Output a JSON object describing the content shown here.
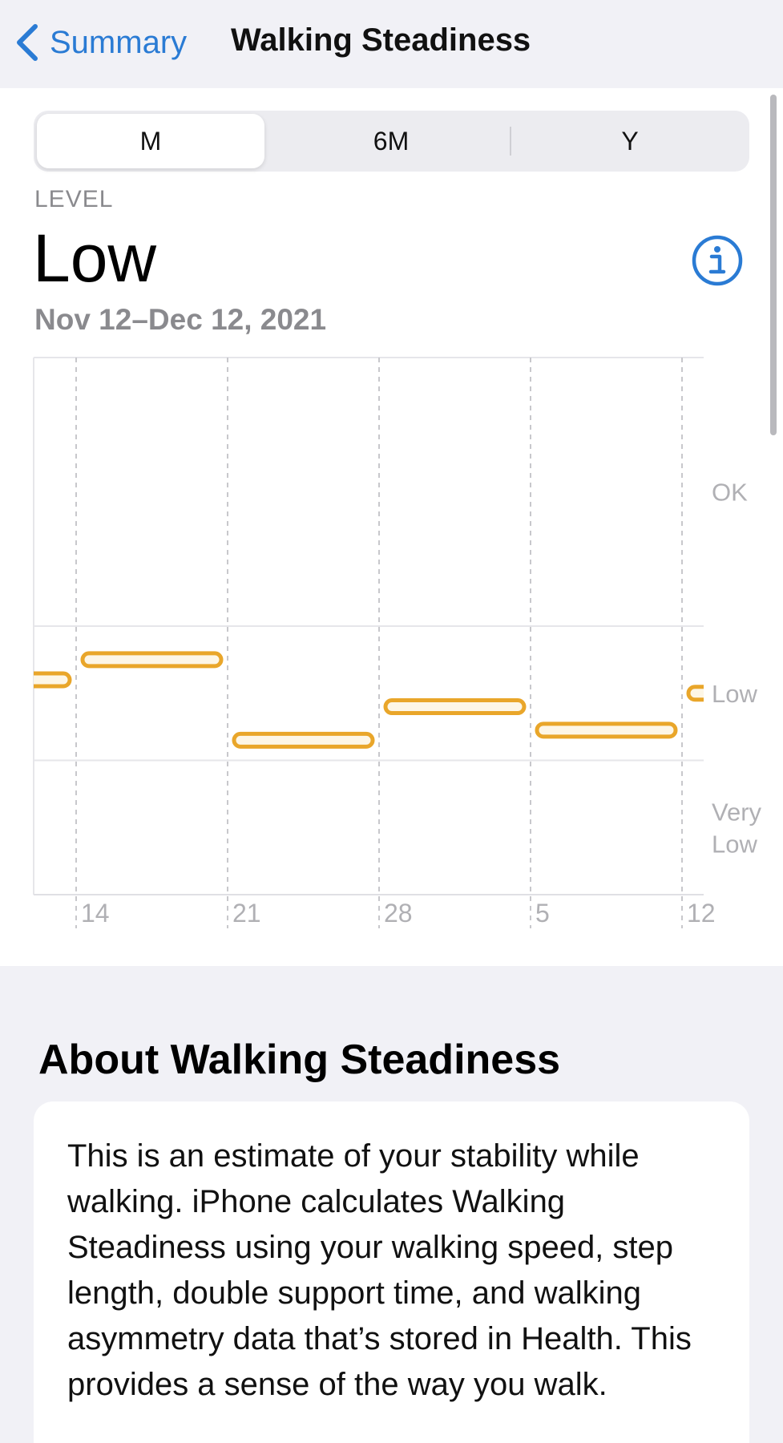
{
  "nav": {
    "back_label": "Summary",
    "title": "Walking Steadiness",
    "accent": "#2a7bd4"
  },
  "segments": [
    {
      "label": "M",
      "selected": true
    },
    {
      "label": "6M",
      "selected": false
    },
    {
      "label": "Y",
      "selected": false
    }
  ],
  "level": {
    "label": "LEVEL",
    "value": "Low",
    "date_range": "Nov 12–Dec 12, 2021"
  },
  "chart_data": {
    "type": "range-bar",
    "bar_color": "#e9a62a",
    "level_bands": [
      {
        "label": "OK"
      },
      {
        "label": "Very\nLow"
      },
      {
        "label": "Low"
      }
    ],
    "x_ticks": [
      "14",
      "21",
      "28",
      "5",
      "12"
    ],
    "weeks": [
      {
        "week": "Nov 7",
        "value": 32
      },
      {
        "week": "Nov 14",
        "value": 35
      },
      {
        "week": "Nov 21",
        "value": 23
      },
      {
        "week": "Nov 28",
        "value": 28
      },
      {
        "week": "Dec 5",
        "value": 24.5
      },
      {
        "week": "Dec 12",
        "value": 30
      }
    ],
    "band_thresholds": [
      20,
      40
    ],
    "ylim": [
      0,
      80
    ]
  },
  "about": {
    "title": "About Walking Steadiness",
    "text": "This is an estimate of your stability while walking. iPhone calculates Walking Steadiness using your walking speed, step length, double support time, and walking asymmetry data that’s stored in Health. This provides a sense of the way you walk."
  }
}
